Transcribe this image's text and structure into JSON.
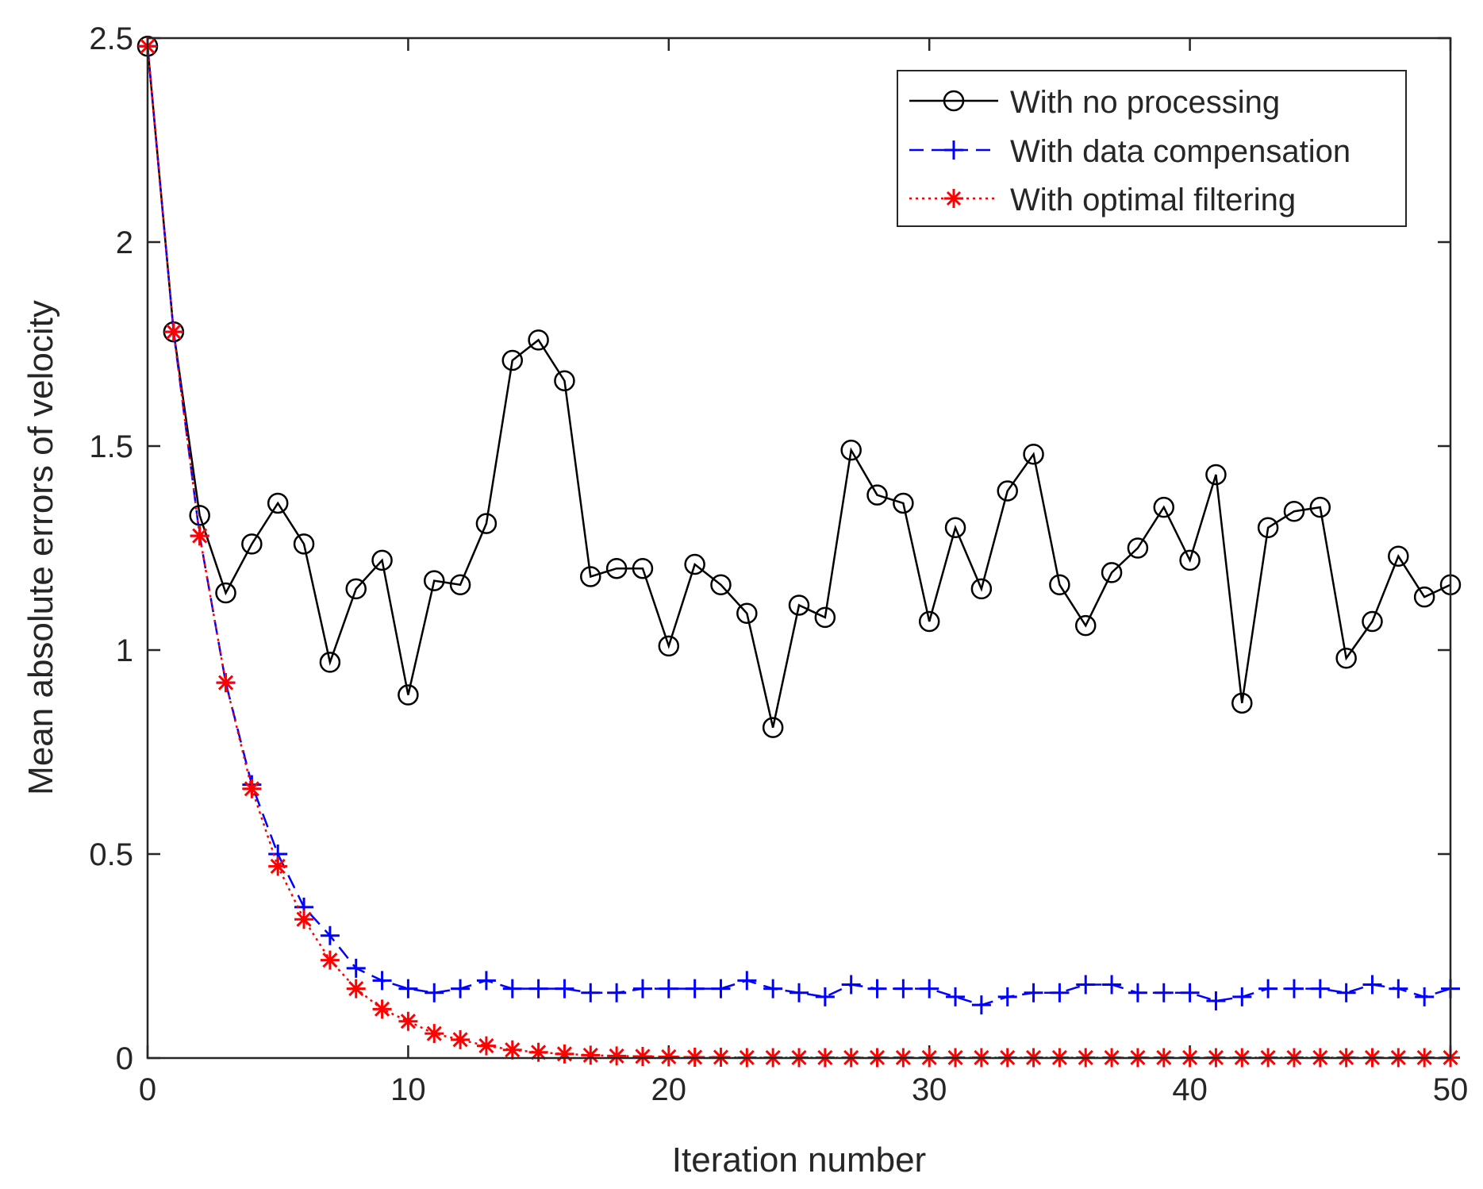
{
  "chart_data": {
    "type": "line",
    "title": "",
    "xlabel": "Iteration number",
    "ylabel": "Mean absolute errors of velocity",
    "xlim": [
      0,
      50
    ],
    "ylim": [
      0,
      2.5
    ],
    "xticks": [
      0,
      10,
      20,
      30,
      40,
      50
    ],
    "yticks": [
      0,
      0.5,
      1,
      1.5,
      2,
      2.5
    ],
    "xtick_labels": [
      "0",
      "10",
      "20",
      "30",
      "40",
      "50"
    ],
    "ytick_labels": [
      "0",
      "0.5",
      "1",
      "1.5",
      "2",
      "2.5"
    ],
    "grid": false,
    "legend_position": "top-right",
    "x": [
      0,
      1,
      2,
      3,
      4,
      5,
      6,
      7,
      8,
      9,
      10,
      11,
      12,
      13,
      14,
      15,
      16,
      17,
      18,
      19,
      20,
      21,
      22,
      23,
      24,
      25,
      26,
      27,
      28,
      29,
      30,
      31,
      32,
      33,
      34,
      35,
      36,
      37,
      38,
      39,
      40,
      41,
      42,
      43,
      44,
      45,
      46,
      47,
      48,
      49,
      50
    ],
    "series": [
      {
        "name": "With no processing",
        "color": "#000000",
        "line_style": "solid",
        "marker": "circle",
        "values": [
          2.48,
          1.78,
          1.33,
          1.14,
          1.26,
          1.36,
          1.26,
          0.97,
          1.15,
          1.22,
          0.89,
          1.17,
          1.16,
          1.31,
          1.71,
          1.76,
          1.66,
          1.18,
          1.2,
          1.2,
          1.01,
          1.21,
          1.16,
          1.09,
          0.81,
          1.11,
          1.08,
          1.49,
          1.38,
          1.36,
          1.07,
          1.3,
          1.15,
          1.39,
          1.48,
          1.16,
          1.06,
          1.19,
          1.25,
          1.35,
          1.22,
          1.43,
          0.87,
          1.3,
          1.34,
          1.35,
          0.98,
          1.07,
          1.23,
          1.13,
          1.16
        ]
      },
      {
        "name": "With data compensation",
        "color": "#0000ff",
        "line_style": "dashed",
        "marker": "plus",
        "values": [
          2.48,
          1.78,
          1.28,
          0.92,
          0.67,
          0.5,
          0.37,
          0.3,
          0.22,
          0.19,
          0.17,
          0.16,
          0.17,
          0.19,
          0.17,
          0.17,
          0.17,
          0.16,
          0.16,
          0.17,
          0.17,
          0.17,
          0.17,
          0.19,
          0.17,
          0.16,
          0.15,
          0.18,
          0.17,
          0.17,
          0.17,
          0.15,
          0.13,
          0.15,
          0.16,
          0.16,
          0.18,
          0.18,
          0.16,
          0.16,
          0.16,
          0.14,
          0.15,
          0.17,
          0.17,
          0.17,
          0.16,
          0.18,
          0.17,
          0.15,
          0.17
        ]
      },
      {
        "name": "With optimal filtering",
        "color": "#ff0000",
        "line_style": "dotted",
        "marker": "asterisk",
        "values": [
          2.48,
          1.78,
          1.28,
          0.92,
          0.66,
          0.47,
          0.34,
          0.24,
          0.17,
          0.12,
          0.09,
          0.06,
          0.045,
          0.03,
          0.02,
          0.014,
          0.01,
          0.007,
          0.005,
          0.004,
          0.003,
          0.002,
          0.002,
          0.001,
          0.001,
          0.001,
          0.001,
          0.001,
          0.001,
          0.001,
          0.001,
          0.001,
          0.001,
          0.001,
          0.001,
          0.001,
          0.001,
          0.001,
          0.001,
          0.001,
          0.001,
          0.001,
          0.001,
          0.001,
          0.001,
          0.001,
          0.001,
          0.001,
          0.001,
          0.001,
          0.001
        ]
      }
    ]
  }
}
